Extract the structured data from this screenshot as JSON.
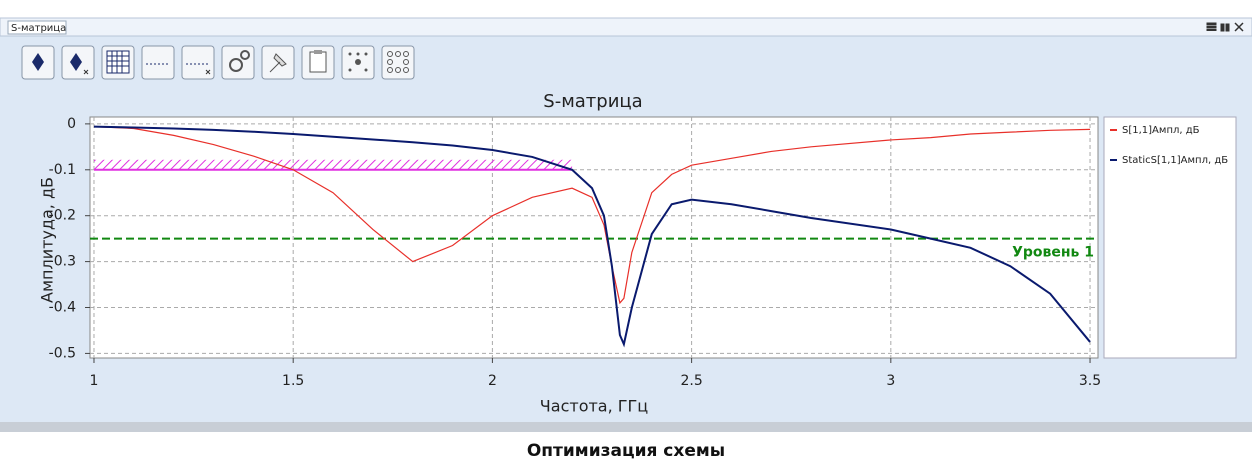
{
  "window": {
    "title": "S-матрица"
  },
  "caption": "Оптимизация схемы",
  "chart_data": {
    "type": "line",
    "title": "S-матрица",
    "x_label": "Частота, ГГц",
    "y_label": "Амплитуда, дБ",
    "x": [
      1,
      1.1,
      1.2,
      1.3,
      1.4,
      1.5,
      1.6,
      1.7,
      1.8,
      1.9,
      2.0,
      2.1,
      2.2,
      2.25,
      2.28,
      2.3,
      2.32,
      2.33,
      2.35,
      2.4,
      2.45,
      2.5,
      2.6,
      2.7,
      2.8,
      3.0,
      3.1,
      3.2,
      3.3,
      3.4,
      3.5
    ],
    "series": [
      {
        "name": "S[1,1]Ампл, дБ",
        "color": "#e8302a",
        "values": [
          -0.006,
          -0.01,
          -0.025,
          -0.045,
          -0.07,
          -0.1,
          -0.15,
          -0.23,
          -0.3,
          -0.265,
          -0.2,
          -0.16,
          -0.14,
          -0.16,
          -0.22,
          -0.31,
          -0.39,
          -0.38,
          -0.28,
          -0.15,
          -0.11,
          -0.09,
          -0.075,
          -0.06,
          -0.05,
          -0.035,
          -0.03,
          -0.022,
          -0.018,
          -0.014,
          -0.012
        ]
      },
      {
        "name": "StaticS[1,1]Ампл, дБ",
        "color": "#0a1a6e",
        "values": [
          -0.006,
          -0.008,
          -0.01,
          -0.013,
          -0.017,
          -0.022,
          -0.028,
          -0.034,
          -0.04,
          -0.047,
          -0.057,
          -0.072,
          -0.1,
          -0.14,
          -0.2,
          -0.31,
          -0.46,
          -0.48,
          -0.4,
          -0.24,
          -0.175,
          -0.165,
          -0.175,
          -0.19,
          -0.205,
          -0.23,
          -0.25,
          -0.27,
          -0.31,
          -0.37,
          -0.475
        ]
      }
    ],
    "xlim": [
      0.99,
      3.52
    ],
    "ylim": [
      -0.51,
      0.015
    ],
    "xticks": [
      1,
      1.5,
      2,
      2.5,
      3,
      3.5
    ],
    "yticks": [
      0,
      -0.1,
      -0.2,
      -0.3,
      -0.4,
      -0.5
    ],
    "grid": true,
    "legend": "right",
    "level": {
      "value": -0.25,
      "label": "Уровень 1",
      "color": "#118811"
    },
    "limit": {
      "value": -0.1,
      "xrange": [
        1,
        2.2
      ],
      "color": "#e030e0"
    }
  }
}
